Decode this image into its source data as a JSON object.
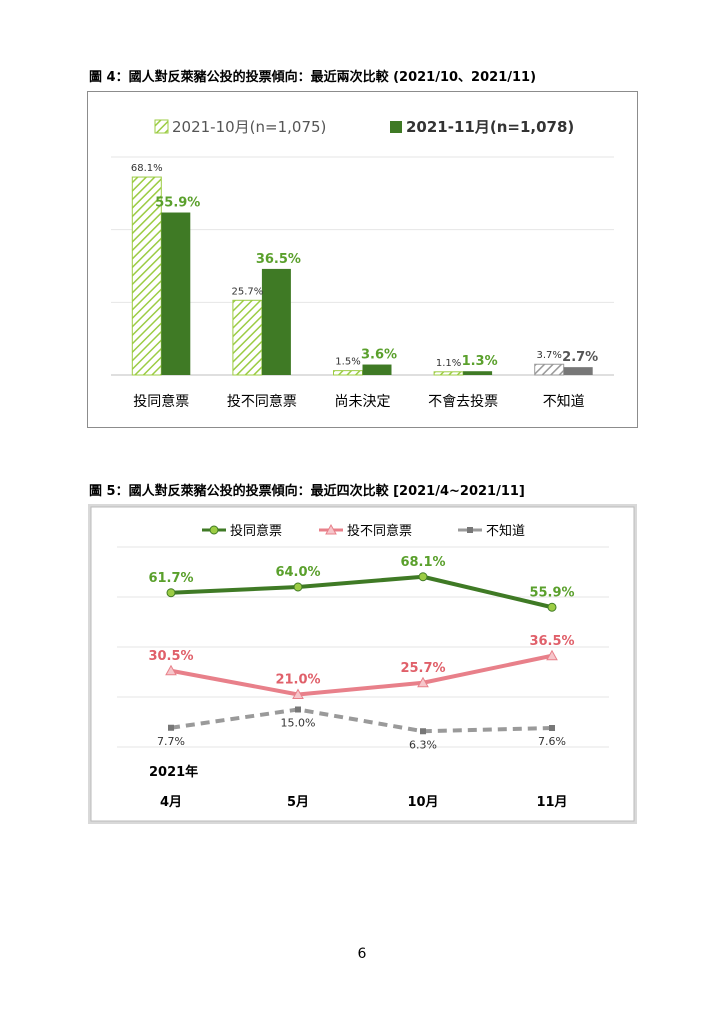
{
  "figure4": {
    "caption": "圖 4：國人對反萊豬公投的投票傾向：最近兩次比較 (2021/10、2021/11)",
    "legend": [
      "2021-10月(n=1,075)",
      "2021-11月(n=1,078)"
    ],
    "categories": [
      "投同意票",
      "投不同意票",
      "尚未決定",
      "不會去投票",
      "不知道"
    ],
    "value_labels_oct": [
      "68.1%",
      "25.7%",
      "1.5%",
      "1.1%",
      "3.7%"
    ],
    "value_labels_nov": [
      "55.9%",
      "36.5%",
      "3.6%",
      "1.3%",
      "2.7%"
    ]
  },
  "figure5": {
    "caption": "圖 5：國人對反萊豬公投的投票傾向：最近四次比較 [2021/4~2021/11]",
    "legend": [
      "投同意票",
      "投不同意票",
      "不知道"
    ],
    "year_label": "2021年",
    "x_labels": [
      "4月",
      "5月",
      "10月",
      "11月"
    ],
    "labels_agree": [
      "61.7%",
      "64.0%",
      "68.1%",
      "55.9%"
    ],
    "labels_disagree": [
      "30.5%",
      "21.0%",
      "25.7%",
      "36.5%"
    ],
    "labels_unknown": [
      "7.7%",
      "15.0%",
      "6.3%",
      "7.6%"
    ]
  },
  "page_number": "6",
  "colors": {
    "green_dark": "#3f7a25",
    "green_light": "#9ccc44",
    "green_label": "#5aa02c",
    "pink": "#e8808a",
    "pink_label": "#e0606a",
    "gray": "#9a9a9a",
    "gray_dark": "#777777"
  },
  "chart_data": [
    {
      "type": "bar",
      "title": "圖 4：國人對反萊豬公投的投票傾向：最近兩次比較 (2021/10、2021/11)",
      "categories": [
        "投同意票",
        "投不同意票",
        "尚未決定",
        "不會去投票",
        "不知道"
      ],
      "series": [
        {
          "name": "2021-10月(n=1,075)",
          "values": [
            68.1,
            25.7,
            1.5,
            1.1,
            3.7
          ]
        },
        {
          "name": "2021-11月(n=1,078)",
          "values": [
            55.9,
            36.5,
            3.6,
            1.3,
            2.7
          ]
        }
      ],
      "ylim": [
        0,
        75
      ],
      "grid": true,
      "legend_position": "top"
    },
    {
      "type": "line",
      "title": "圖 5：國人對反萊豬公投的投票傾向：最近四次比較 [2021/4~2021/11]",
      "categories": [
        "4月",
        "5月",
        "10月",
        "11月"
      ],
      "series": [
        {
          "name": "投同意票",
          "values": [
            61.7,
            64.0,
            68.1,
            55.9
          ]
        },
        {
          "name": "投不同意票",
          "values": [
            30.5,
            21.0,
            25.7,
            36.5
          ]
        },
        {
          "name": "不知道",
          "values": [
            7.7,
            15.0,
            6.3,
            7.6
          ]
        }
      ],
      "ylim": [
        0,
        80
      ],
      "grid": true,
      "legend_position": "top"
    }
  ]
}
